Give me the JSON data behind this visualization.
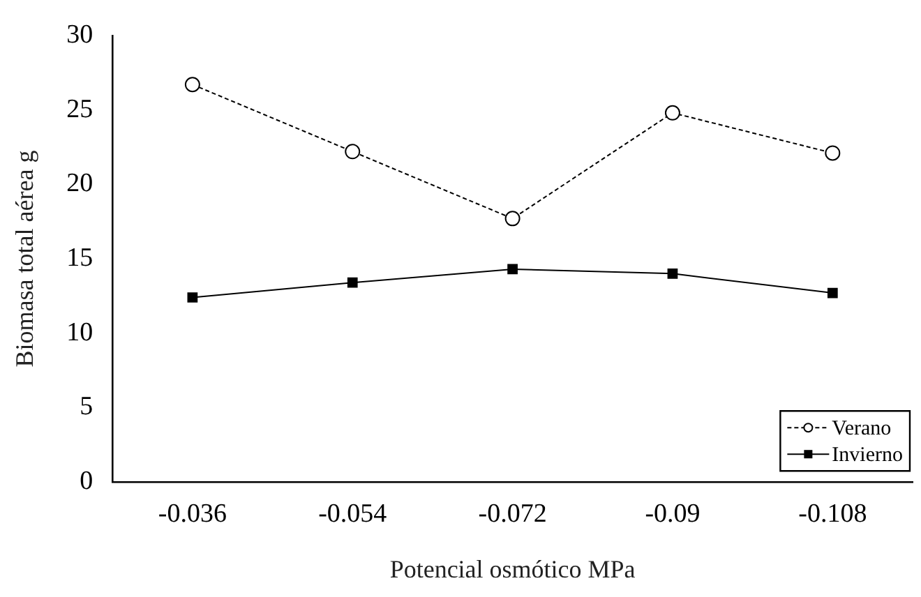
{
  "chart_data": {
    "type": "line",
    "xlabel": "Potencial osmótico MPa",
    "ylabel": "Biomasa total aérea g",
    "categories": [
      "-0.036",
      "-0.054",
      "-0.072",
      "-0.09",
      "-0.108"
    ],
    "series": [
      {
        "name": "Verano",
        "color": "#000000",
        "marker": "circle",
        "line_style": "dashed",
        "values": [
          26.7,
          22.2,
          17.7,
          24.8,
          22.1
        ]
      },
      {
        "name": "Invierno",
        "color": "#000000",
        "marker": "square",
        "line_style": "solid",
        "values": [
          12.4,
          13.4,
          14.3,
          14.0,
          12.7
        ]
      }
    ],
    "ylim": [
      0,
      30
    ],
    "yticks": [
      0,
      5,
      10,
      15,
      20,
      25,
      30
    ],
    "grid": false,
    "legend": "bottom right"
  }
}
